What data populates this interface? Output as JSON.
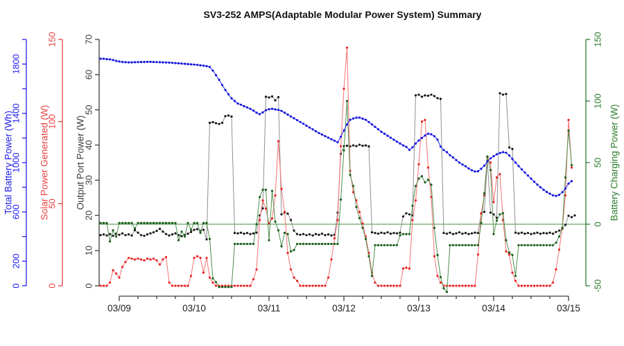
{
  "title": "SV3-252 AMPS(Adaptable Modular Power System) Summary",
  "chart_data": {
    "type": "line",
    "title": "SV3-252 AMPS(Adaptable Modular Power System) Summary",
    "x_axis": {
      "start": "03/08 18:00",
      "step_hours": 1,
      "day_labels": [
        "03/09",
        "03/10",
        "03/11",
        "03/12",
        "03/13",
        "03/14",
        "03/15"
      ],
      "minor_tick_interval_hours": 6
    },
    "y_axes": [
      {
        "id": "battery",
        "side": "left",
        "label": "Total Battery Power (Wh)",
        "color": "#2222ee",
        "min": 0,
        "max": 2000,
        "tick_step": 200,
        "labeled_ticks": [
          0,
          200,
          600,
          1000,
          1400,
          1800
        ]
      },
      {
        "id": "solar",
        "side": "left",
        "label": "Solar Power Generated (W)",
        "color": "#e84444",
        "min": 0,
        "max": 150,
        "tick_step": 50,
        "labeled_ticks": [
          0,
          50,
          100,
          150
        ]
      },
      {
        "id": "output",
        "side": "left",
        "label": "Output Port Power (W)",
        "color": "#3d3d3d",
        "min": 0,
        "max": 70,
        "tick_step": 10,
        "labeled_ticks": [
          0,
          10,
          20,
          30,
          40,
          50,
          60,
          70
        ]
      },
      {
        "id": "charging",
        "side": "right",
        "label": "Battery Charging Power (W)",
        "color": "#2d7d2d",
        "min": -50,
        "max": 150,
        "tick_step": 50,
        "labeled_ticks": [
          -50,
          0,
          50,
          100,
          150
        ],
        "zero_line": true
      }
    ],
    "series": [
      {
        "name": "output-port-power",
        "axis": "output",
        "line_color": "#8f8f8f",
        "dot_color": "#141414",
        "values": [
          14.4,
          14.6,
          14.3,
          14.7,
          14.2,
          14.8,
          14.5,
          14.9,
          14.4,
          14.6,
          14.3,
          15.8,
          15.1,
          14.4,
          14.2,
          14.6,
          14.9,
          15.2,
          15.6,
          16.2,
          15.4,
          14.7,
          14.3,
          14.6,
          14.9,
          14.4,
          14.1,
          14.5,
          14.8,
          15.3,
          15.9,
          16.1,
          15.6,
          15.9,
          13.2,
          46.3,
          46.5,
          46.2,
          46,
          46.3,
          48.2,
          48.4,
          48.1,
          15,
          14.9,
          15.1,
          14.8,
          15,
          14.7,
          14.9,
          15.1,
          20,
          22,
          53.7,
          53.5,
          53.8,
          52.7,
          53.6,
          20.3,
          20.8,
          20.5,
          18.7,
          15.7,
          14.7,
          14.5,
          14.7,
          14.4,
          14.6,
          14.3,
          14.7,
          14.5,
          14.8,
          14.4,
          14.6,
          14.3,
          14.5,
          20.8,
          37.5,
          39.7,
          39.8,
          39.6,
          39.9,
          39.7,
          40.1,
          39.8,
          39.9,
          39.6,
          15.2,
          15,
          14.8,
          15.1,
          14.9,
          15.2,
          14.8,
          15,
          14.9,
          15.1,
          19.7,
          20.6,
          20.3,
          20,
          54.1,
          54.3,
          53.7,
          54.1,
          54,
          54.3,
          53.9,
          53.3,
          53.1,
          15,
          14.8,
          15.1,
          14.7,
          14.9,
          15.2,
          14.8,
          15,
          14.7,
          14.9,
          15.1,
          15,
          20.6,
          21,
          35.6,
          20.8,
          20.3,
          19.3,
          54.7,
          54.3,
          54.5,
          39.3,
          38.9,
          15.1,
          14.9,
          15.1,
          14.8,
          15,
          14.7,
          14.9,
          15.1,
          14.8,
          15,
          14.9,
          15.1,
          14.8,
          15.3,
          15.7,
          16.2,
          17.3,
          19.9,
          19.5,
          20
        ]
      },
      {
        "name": "solar-power-generated",
        "axis": "solar",
        "line_color": "#f87070",
        "dot_color": "#e82222",
        "values": [
          0,
          0,
          0,
          2,
          9.5,
          7.5,
          5,
          11.5,
          14.5,
          17,
          16.5,
          16,
          16.5,
          16,
          15.5,
          16.5,
          16,
          16.5,
          15.5,
          13,
          16,
          17.5,
          2,
          0,
          0,
          0,
          0,
          0,
          0,
          6,
          17,
          18,
          17,
          8,
          17,
          5,
          2,
          0,
          0,
          0,
          0,
          0,
          0,
          0,
          0,
          0,
          0,
          0,
          0,
          4,
          10,
          40,
          52,
          47,
          38,
          41,
          55,
          88,
          59,
          45,
          20,
          10,
          5,
          3,
          0,
          0,
          0,
          0,
          0,
          0,
          0,
          0,
          0,
          5,
          16,
          29,
          40,
          85,
          120,
          145,
          70,
          57,
          52,
          45,
          38,
          30,
          20,
          8,
          2,
          0,
          0,
          0,
          0,
          0,
          0,
          0,
          0,
          10.5,
          11,
          10.5,
          40,
          52,
          74,
          100,
          101,
          72,
          54,
          18,
          6,
          2,
          0,
          0,
          0,
          0,
          0,
          0,
          0,
          0,
          0,
          0,
          0,
          19,
          44,
          55,
          78,
          75,
          51,
          66,
          68,
          40,
          21,
          19,
          8,
          3,
          0,
          0,
          0,
          0,
          0,
          0,
          0,
          0,
          0,
          0,
          0,
          2,
          10,
          22,
          35,
          55,
          101,
          72,
          null
        ]
      },
      {
        "name": "battery-charging-power",
        "axis": "charging",
        "line_color": "#4d8f4d",
        "dot_color": "#1c5c1c",
        "values": [
          1,
          1,
          1,
          -14,
          -5,
          -10,
          1,
          1,
          1,
          1,
          1,
          -3.5,
          1,
          1,
          1,
          1,
          1,
          1,
          1,
          1,
          1,
          1,
          1,
          1,
          1,
          -13,
          -6,
          -10,
          1,
          -4.5,
          1,
          1,
          -7,
          1,
          1,
          -12,
          -44,
          -47,
          -51,
          -51,
          -51,
          -51,
          -51,
          -16,
          -16,
          -16,
          -16,
          -16,
          -16,
          -16,
          0,
          22,
          28,
          28,
          -13,
          27,
          2,
          -5,
          -18,
          -7,
          -8,
          -22,
          -21,
          -16,
          -16,
          -16,
          -16,
          -16,
          -16,
          -16,
          -16,
          -16,
          -16,
          -16,
          -16,
          -16,
          -16,
          20,
          60,
          100,
          40,
          31,
          14,
          5,
          -3,
          -12,
          -26,
          -42,
          -17,
          -17,
          -17,
          -17,
          -17,
          -17,
          -17,
          -17,
          -9,
          -8,
          -8,
          -8,
          15,
          31,
          37,
          39,
          34,
          36,
          32,
          -3,
          -25,
          -43,
          -52,
          -55,
          -17,
          -17,
          -17,
          -17,
          -17,
          -17,
          -17,
          -17,
          -17,
          -17,
          1,
          25,
          55,
          44,
          -8,
          3,
          8,
          9,
          -13,
          -23,
          -25,
          -42,
          -17,
          -17,
          -17,
          -17,
          -17,
          -17,
          -17,
          -17,
          -17,
          -17,
          -17,
          -17,
          -15,
          -10,
          -3,
          38,
          76,
          48,
          null
        ]
      },
      {
        "name": "total-battery-power",
        "axis": "battery",
        "line_color": "#2222ee",
        "dot_color": "#1515dd",
        "values": [
          1843,
          1843,
          1840,
          1838,
          1833,
          1826,
          1821,
          1817,
          1815,
          1814,
          1814,
          1815,
          1816,
          1817,
          1817,
          1818,
          1818,
          1817,
          1816,
          1815,
          1814,
          1813,
          1812,
          1810,
          1808,
          1806,
          1804,
          1802,
          1800,
          1798,
          1796,
          1793,
          1790,
          1787,
          1783,
          1777,
          1747,
          1710,
          1672,
          1630,
          1590,
          1555,
          1522,
          1500,
          1480,
          1470,
          1458,
          1448,
          1437,
          1422,
          1405,
          1393,
          1408,
          1426,
          1433,
          1437,
          1432,
          1428,
          1420,
          1405,
          1390,
          1375,
          1360,
          1345,
          1330,
          1316,
          1300,
          1285,
          1270,
          1255,
          1240,
          1228,
          1215,
          1202,
          1190,
          1178,
          1165,
          1210,
          1260,
          1310,
          1348,
          1358,
          1365,
          1365,
          1357,
          1348,
          1330,
          1310,
          1290,
          1270,
          1250,
          1235,
          1218,
          1202,
          1186,
          1170,
          1155,
          1140,
          1128,
          1104,
          1124,
          1155,
          1180,
          1200,
          1220,
          1235,
          1230,
          1214,
          1186,
          1130,
          1102,
          1085,
          1060,
          1042,
          1020,
          1000,
          985,
          970,
          952,
          938,
          928,
          930,
          950,
          975,
          1010,
          1035,
          1052,
          1068,
          1078,
          1085,
          1080,
          1058,
          1030,
          1000,
          972,
          945,
          920,
          895,
          870,
          845,
          822,
          800,
          780,
          762,
          748,
          735,
          730,
          738,
          760,
          790,
          830,
          850,
          null
        ]
      }
    ]
  }
}
